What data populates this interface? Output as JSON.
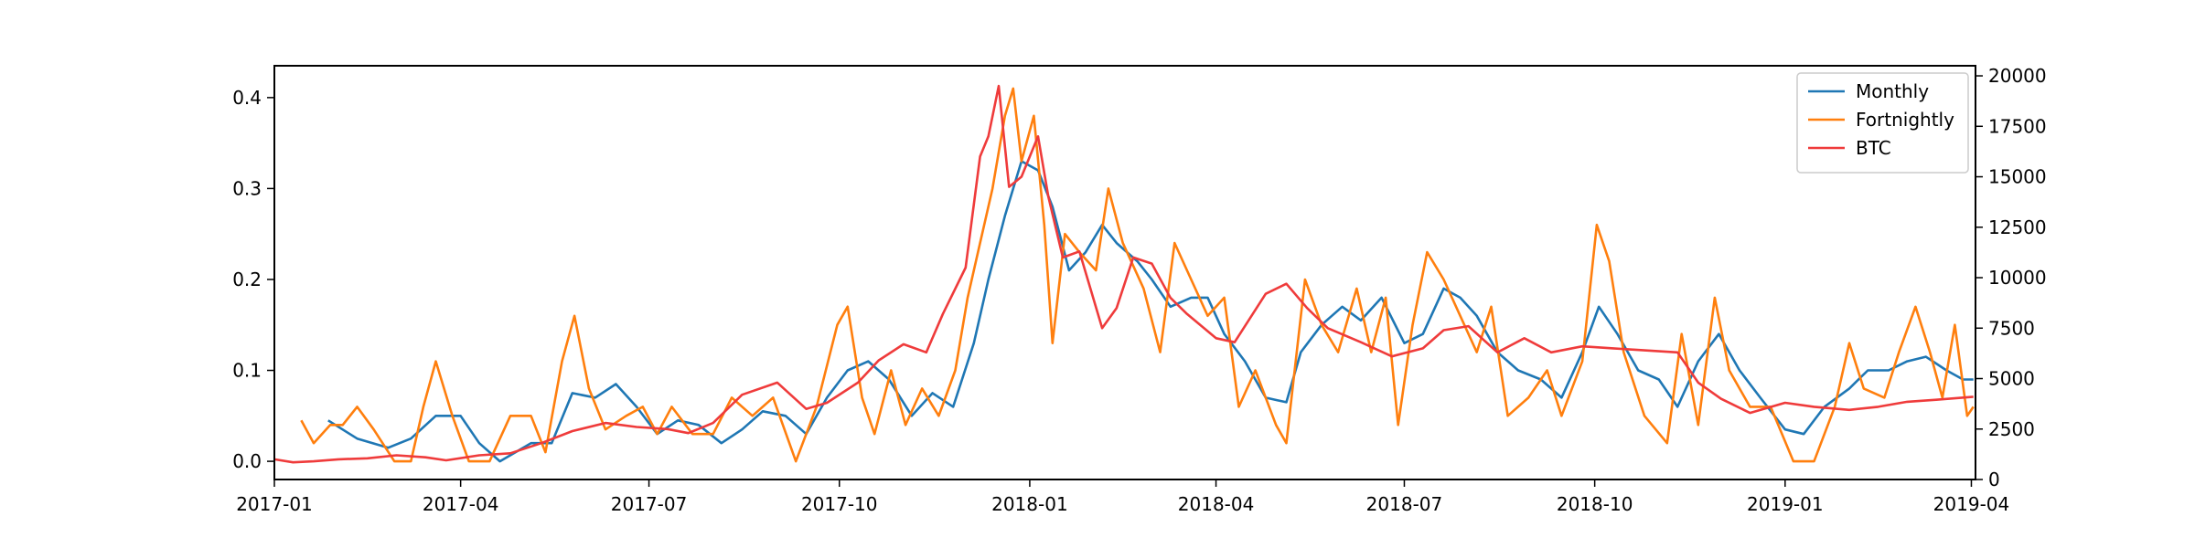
{
  "chart_data": {
    "type": "line",
    "title": "",
    "xlabel": "",
    "ylabel": "",
    "y2label": "",
    "grid": false,
    "legend_position": "top-right",
    "x_range": [
      "2017-01-01",
      "2019-04-03"
    ],
    "x_ticks": [
      "2017-01",
      "2017-04",
      "2017-07",
      "2017-10",
      "2018-01",
      "2018-04",
      "2018-07",
      "2018-10",
      "2019-01",
      "2019-04"
    ],
    "y_left": {
      "range": [
        -0.02,
        0.435
      ],
      "ticks": [
        0.0,
        0.1,
        0.2,
        0.3,
        0.4
      ],
      "tick_labels": [
        "0.0",
        "0.1",
        "0.2",
        "0.3",
        "0.4"
      ]
    },
    "y_right": {
      "range": [
        0,
        20500
      ],
      "ticks": [
        0,
        2500,
        5000,
        7500,
        10000,
        12500,
        15000,
        17500,
        20000
      ],
      "tick_labels": [
        "0",
        "2500",
        "5000",
        "7500",
        "10000",
        "12500",
        "15000",
        "17500",
        "20000"
      ]
    },
    "series": [
      {
        "name": "Monthly",
        "axis": "left",
        "color": "#1f77b4",
        "points": [
          [
            "2017-01-27",
            0.045
          ],
          [
            "2017-02-10",
            0.025
          ],
          [
            "2017-02-25",
            0.015
          ],
          [
            "2017-03-08",
            0.025
          ],
          [
            "2017-03-20",
            0.05
          ],
          [
            "2017-04-01",
            0.05
          ],
          [
            "2017-04-10",
            0.02
          ],
          [
            "2017-04-20",
            0.0
          ],
          [
            "2017-05-05",
            0.02
          ],
          [
            "2017-05-15",
            0.02
          ],
          [
            "2017-05-25",
            0.075
          ],
          [
            "2017-06-05",
            0.07
          ],
          [
            "2017-06-15",
            0.085
          ],
          [
            "2017-06-25",
            0.06
          ],
          [
            "2017-07-05",
            0.03
          ],
          [
            "2017-07-15",
            0.045
          ],
          [
            "2017-07-25",
            0.04
          ],
          [
            "2017-08-05",
            0.02
          ],
          [
            "2017-08-15",
            0.035
          ],
          [
            "2017-08-25",
            0.055
          ],
          [
            "2017-09-05",
            0.05
          ],
          [
            "2017-09-15",
            0.03
          ],
          [
            "2017-09-25",
            0.07
          ],
          [
            "2017-10-05",
            0.1
          ],
          [
            "2017-10-15",
            0.11
          ],
          [
            "2017-10-25",
            0.09
          ],
          [
            "2017-11-05",
            0.05
          ],
          [
            "2017-11-15",
            0.075
          ],
          [
            "2017-11-25",
            0.06
          ],
          [
            "2017-12-05",
            0.13
          ],
          [
            "2017-12-12",
            0.2
          ],
          [
            "2017-12-20",
            0.27
          ],
          [
            "2017-12-28",
            0.33
          ],
          [
            "2018-01-05",
            0.32
          ],
          [
            "2018-01-12",
            0.28
          ],
          [
            "2018-01-20",
            0.21
          ],
          [
            "2018-01-28",
            0.23
          ],
          [
            "2018-02-05",
            0.26
          ],
          [
            "2018-02-12",
            0.24
          ],
          [
            "2018-02-22",
            0.22
          ],
          [
            "2018-03-01",
            0.2
          ],
          [
            "2018-03-10",
            0.17
          ],
          [
            "2018-03-20",
            0.18
          ],
          [
            "2018-03-28",
            0.18
          ],
          [
            "2018-04-05",
            0.14
          ],
          [
            "2018-04-15",
            0.11
          ],
          [
            "2018-04-25",
            0.07
          ],
          [
            "2018-05-05",
            0.065
          ],
          [
            "2018-05-12",
            0.12
          ],
          [
            "2018-05-22",
            0.15
          ],
          [
            "2018-06-01",
            0.17
          ],
          [
            "2018-06-10",
            0.155
          ],
          [
            "2018-06-20",
            0.18
          ],
          [
            "2018-07-01",
            0.13
          ],
          [
            "2018-07-10",
            0.14
          ],
          [
            "2018-07-20",
            0.19
          ],
          [
            "2018-07-28",
            0.18
          ],
          [
            "2018-08-05",
            0.16
          ],
          [
            "2018-08-15",
            0.12
          ],
          [
            "2018-08-25",
            0.1
          ],
          [
            "2018-09-05",
            0.09
          ],
          [
            "2018-09-15",
            0.07
          ],
          [
            "2018-09-25",
            0.12
          ],
          [
            "2018-10-03",
            0.17
          ],
          [
            "2018-10-12",
            0.14
          ],
          [
            "2018-10-22",
            0.1
          ],
          [
            "2018-11-01",
            0.09
          ],
          [
            "2018-11-10",
            0.06
          ],
          [
            "2018-11-20",
            0.11
          ],
          [
            "2018-11-30",
            0.14
          ],
          [
            "2018-12-10",
            0.1
          ],
          [
            "2018-12-20",
            0.07
          ],
          [
            "2019-01-01",
            0.035
          ],
          [
            "2019-01-10",
            0.03
          ],
          [
            "2019-01-20",
            0.06
          ],
          [
            "2019-02-01",
            0.08
          ],
          [
            "2019-02-10",
            0.1
          ],
          [
            "2019-02-20",
            0.1
          ],
          [
            "2019-03-01",
            0.11
          ],
          [
            "2019-03-10",
            0.115
          ],
          [
            "2019-03-20",
            0.1
          ],
          [
            "2019-03-28",
            0.09
          ],
          [
            "2019-04-02",
            0.09
          ]
        ]
      },
      {
        "name": "Fortnightly",
        "axis": "left",
        "color": "#ff7f0e",
        "points": [
          [
            "2017-01-14",
            0.045
          ],
          [
            "2017-01-20",
            0.02
          ],
          [
            "2017-01-28",
            0.04
          ],
          [
            "2017-02-03",
            0.04
          ],
          [
            "2017-02-10",
            0.06
          ],
          [
            "2017-02-18",
            0.035
          ],
          [
            "2017-02-28",
            0.0
          ],
          [
            "2017-03-08",
            0.0
          ],
          [
            "2017-03-14",
            0.06
          ],
          [
            "2017-03-20",
            0.11
          ],
          [
            "2017-03-28",
            0.05
          ],
          [
            "2017-04-05",
            0.0
          ],
          [
            "2017-04-15",
            0.0
          ],
          [
            "2017-04-25",
            0.05
          ],
          [
            "2017-05-05",
            0.05
          ],
          [
            "2017-05-12",
            0.01
          ],
          [
            "2017-05-20",
            0.11
          ],
          [
            "2017-05-26",
            0.16
          ],
          [
            "2017-06-02",
            0.08
          ],
          [
            "2017-06-10",
            0.035
          ],
          [
            "2017-06-20",
            0.05
          ],
          [
            "2017-06-28",
            0.06
          ],
          [
            "2017-07-05",
            0.03
          ],
          [
            "2017-07-12",
            0.06
          ],
          [
            "2017-07-22",
            0.03
          ],
          [
            "2017-08-01",
            0.03
          ],
          [
            "2017-08-10",
            0.07
          ],
          [
            "2017-08-20",
            0.05
          ],
          [
            "2017-08-30",
            0.07
          ],
          [
            "2017-09-10",
            0.0
          ],
          [
            "2017-09-20",
            0.06
          ],
          [
            "2017-09-30",
            0.15
          ],
          [
            "2017-10-05",
            0.17
          ],
          [
            "2017-10-12",
            0.07
          ],
          [
            "2017-10-18",
            0.03
          ],
          [
            "2017-10-26",
            0.1
          ],
          [
            "2017-11-02",
            0.04
          ],
          [
            "2017-11-10",
            0.08
          ],
          [
            "2017-11-18",
            0.05
          ],
          [
            "2017-11-26",
            0.1
          ],
          [
            "2017-12-02",
            0.18
          ],
          [
            "2017-12-08",
            0.24
          ],
          [
            "2017-12-14",
            0.3
          ],
          [
            "2017-12-20",
            0.38
          ],
          [
            "2017-12-24",
            0.41
          ],
          [
            "2017-12-28",
            0.33
          ],
          [
            "2018-01-03",
            0.38
          ],
          [
            "2018-01-08",
            0.26
          ],
          [
            "2018-01-12",
            0.13
          ],
          [
            "2018-01-18",
            0.25
          ],
          [
            "2018-01-25",
            0.23
          ],
          [
            "2018-02-02",
            0.21
          ],
          [
            "2018-02-08",
            0.3
          ],
          [
            "2018-02-15",
            0.24
          ],
          [
            "2018-02-25",
            0.19
          ],
          [
            "2018-03-05",
            0.12
          ],
          [
            "2018-03-12",
            0.24
          ],
          [
            "2018-03-20",
            0.2
          ],
          [
            "2018-03-28",
            0.16
          ],
          [
            "2018-04-05",
            0.18
          ],
          [
            "2018-04-12",
            0.06
          ],
          [
            "2018-04-20",
            0.1
          ],
          [
            "2018-04-30",
            0.04
          ],
          [
            "2018-05-05",
            0.02
          ],
          [
            "2018-05-14",
            0.2
          ],
          [
            "2018-05-22",
            0.15
          ],
          [
            "2018-05-30",
            0.12
          ],
          [
            "2018-06-08",
            0.19
          ],
          [
            "2018-06-15",
            0.12
          ],
          [
            "2018-06-22",
            0.18
          ],
          [
            "2018-06-28",
            0.04
          ],
          [
            "2018-07-05",
            0.15
          ],
          [
            "2018-07-12",
            0.23
          ],
          [
            "2018-07-20",
            0.2
          ],
          [
            "2018-07-28",
            0.16
          ],
          [
            "2018-08-05",
            0.12
          ],
          [
            "2018-08-12",
            0.17
          ],
          [
            "2018-08-20",
            0.05
          ],
          [
            "2018-08-30",
            0.07
          ],
          [
            "2018-09-08",
            0.1
          ],
          [
            "2018-09-15",
            0.05
          ],
          [
            "2018-09-25",
            0.11
          ],
          [
            "2018-10-02",
            0.26
          ],
          [
            "2018-10-08",
            0.22
          ],
          [
            "2018-10-15",
            0.12
          ],
          [
            "2018-10-25",
            0.05
          ],
          [
            "2018-11-05",
            0.02
          ],
          [
            "2018-11-12",
            0.14
          ],
          [
            "2018-11-20",
            0.04
          ],
          [
            "2018-11-28",
            0.18
          ],
          [
            "2018-12-05",
            0.1
          ],
          [
            "2018-12-15",
            0.06
          ],
          [
            "2018-12-25",
            0.06
          ],
          [
            "2019-01-05",
            0.0
          ],
          [
            "2019-01-15",
            0.0
          ],
          [
            "2019-01-25",
            0.06
          ],
          [
            "2019-02-01",
            0.13
          ],
          [
            "2019-02-08",
            0.08
          ],
          [
            "2019-02-18",
            0.07
          ],
          [
            "2019-02-25",
            0.12
          ],
          [
            "2019-03-05",
            0.17
          ],
          [
            "2019-03-12",
            0.12
          ],
          [
            "2019-03-18",
            0.07
          ],
          [
            "2019-03-24",
            0.15
          ],
          [
            "2019-03-30",
            0.05
          ],
          [
            "2019-04-02",
            0.06
          ]
        ]
      },
      {
        "name": "BTC",
        "axis": "right",
        "color": "#ef3b3b",
        "points": [
          [
            "2017-01-01",
            1000
          ],
          [
            "2017-01-10",
            850
          ],
          [
            "2017-01-20",
            900
          ],
          [
            "2017-02-01",
            1000
          ],
          [
            "2017-02-15",
            1050
          ],
          [
            "2017-03-01",
            1200
          ],
          [
            "2017-03-15",
            1100
          ],
          [
            "2017-03-25",
            950
          ],
          [
            "2017-04-10",
            1200
          ],
          [
            "2017-04-25",
            1300
          ],
          [
            "2017-05-10",
            1800
          ],
          [
            "2017-05-25",
            2400
          ],
          [
            "2017-06-10",
            2800
          ],
          [
            "2017-06-25",
            2600
          ],
          [
            "2017-07-10",
            2500
          ],
          [
            "2017-07-20",
            2300
          ],
          [
            "2017-08-01",
            2800
          ],
          [
            "2017-08-15",
            4200
          ],
          [
            "2017-09-01",
            4800
          ],
          [
            "2017-09-15",
            3500
          ],
          [
            "2017-09-25",
            3800
          ],
          [
            "2017-10-10",
            4800
          ],
          [
            "2017-10-20",
            5900
          ],
          [
            "2017-11-01",
            6700
          ],
          [
            "2017-11-12",
            6300
          ],
          [
            "2017-11-20",
            8200
          ],
          [
            "2017-12-01",
            10500
          ],
          [
            "2017-12-08",
            16000
          ],
          [
            "2017-12-12",
            17000
          ],
          [
            "2017-12-17",
            19500
          ],
          [
            "2017-12-22",
            14500
          ],
          [
            "2017-12-28",
            15000
          ],
          [
            "2018-01-05",
            17000
          ],
          [
            "2018-01-10",
            14000
          ],
          [
            "2018-01-17",
            11000
          ],
          [
            "2018-01-25",
            11300
          ],
          [
            "2018-02-05",
            7500
          ],
          [
            "2018-02-12",
            8500
          ],
          [
            "2018-02-20",
            11000
          ],
          [
            "2018-03-01",
            10700
          ],
          [
            "2018-03-10",
            9000
          ],
          [
            "2018-03-18",
            8200
          ],
          [
            "2018-04-01",
            7000
          ],
          [
            "2018-04-10",
            6800
          ],
          [
            "2018-04-25",
            9200
          ],
          [
            "2018-05-05",
            9700
          ],
          [
            "2018-05-15",
            8500
          ],
          [
            "2018-05-25",
            7500
          ],
          [
            "2018-06-10",
            6800
          ],
          [
            "2018-06-25",
            6100
          ],
          [
            "2018-07-10",
            6500
          ],
          [
            "2018-07-20",
            7400
          ],
          [
            "2018-08-01",
            7600
          ],
          [
            "2018-08-15",
            6300
          ],
          [
            "2018-08-28",
            7000
          ],
          [
            "2018-09-10",
            6300
          ],
          [
            "2018-09-25",
            6600
          ],
          [
            "2018-10-10",
            6500
          ],
          [
            "2018-10-25",
            6400
          ],
          [
            "2018-11-10",
            6300
          ],
          [
            "2018-11-20",
            4800
          ],
          [
            "2018-12-01",
            4000
          ],
          [
            "2018-12-15",
            3300
          ],
          [
            "2019-01-01",
            3800
          ],
          [
            "2019-01-15",
            3600
          ],
          [
            "2019-02-01",
            3450
          ],
          [
            "2019-02-15",
            3600
          ],
          [
            "2019-03-01",
            3850
          ],
          [
            "2019-03-15",
            3950
          ],
          [
            "2019-04-02",
            4100
          ]
        ]
      }
    ]
  }
}
